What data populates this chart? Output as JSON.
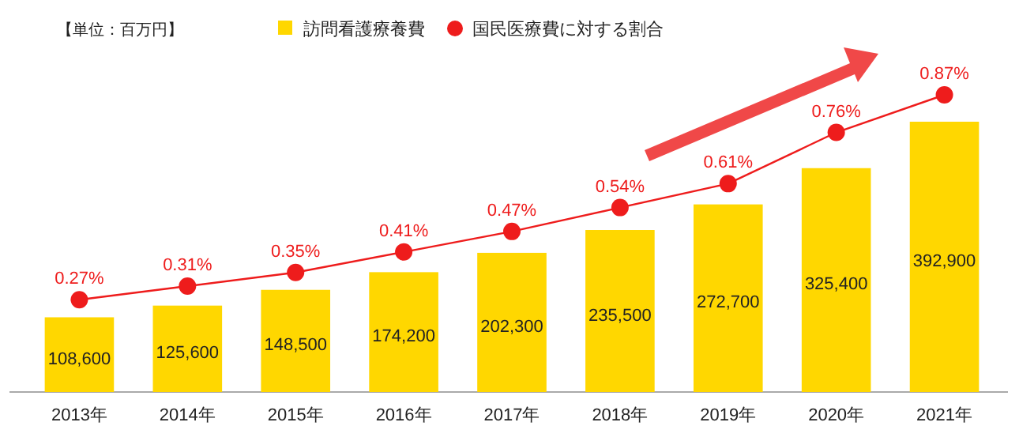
{
  "chart_data": {
    "type": "bar",
    "categories": [
      "2013年",
      "2014年",
      "2015年",
      "2016年",
      "2017年",
      "2018年",
      "2019年",
      "2020年",
      "2021年"
    ],
    "series": [
      {
        "name": "訪問看護療養費",
        "color": "#ffd700",
        "values": [
          108600,
          125600,
          148500,
          174200,
          202300,
          235500,
          272700,
          325400,
          392900
        ],
        "value_labels": [
          "108,600",
          "125,600",
          "148,500",
          "174,200",
          "202,300",
          "235,500",
          "272,700",
          "325,400",
          "392,900"
        ]
      },
      {
        "name": "国民医療費に対する割合",
        "type": "line",
        "axis": "y2",
        "color": "#ee1c1c",
        "values": [
          0.27,
          0.31,
          0.35,
          0.41,
          0.47,
          0.54,
          0.61,
          0.76,
          0.87
        ],
        "value_labels": [
          "0.27%",
          "0.31%",
          "0.35%",
          "0.41%",
          "0.47%",
          "0.54%",
          "0.61%",
          "0.76%",
          "0.87%"
        ]
      }
    ],
    "marker": "circle",
    "legend": "top",
    "annotations": [
      "【単位：百万円】"
    ]
  }
}
